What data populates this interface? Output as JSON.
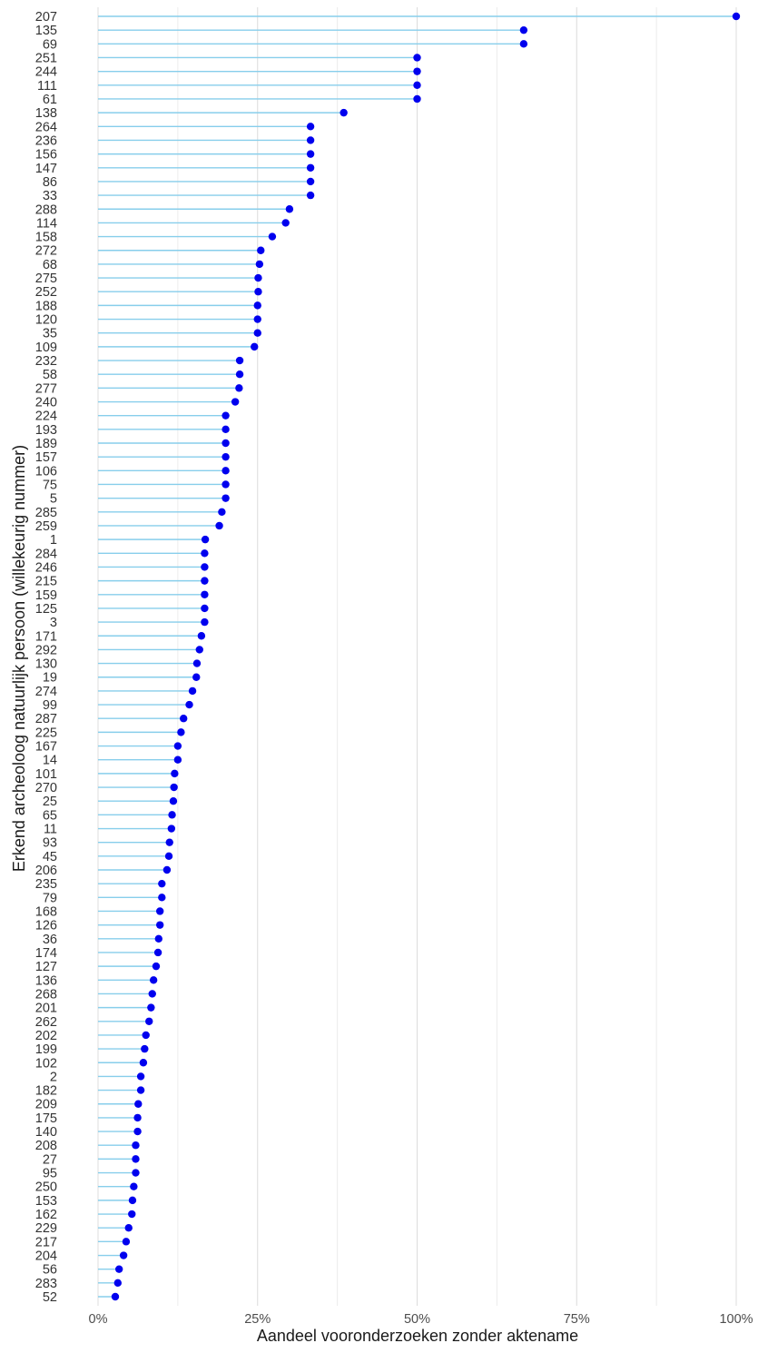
{
  "chart_data": {
    "type": "lollipop",
    "orientation": "horizontal",
    "xlabel": "Aandeel vooronderzoeken zonder aktename",
    "ylabel": "Erkend archeoloog natuurlijk persoon (willekeurig nummer)",
    "xlim": [
      0,
      1
    ],
    "x_ticks": [
      {
        "value": 0,
        "label": "0%"
      },
      {
        "value": 0.25,
        "label": "25%"
      },
      {
        "value": 0.5,
        "label": "50%"
      },
      {
        "value": 0.75,
        "label": "75%"
      },
      {
        "value": 1,
        "label": "100%"
      }
    ],
    "grid": "vertical major and minor",
    "categories": [
      "207",
      "135",
      "69",
      "251",
      "244",
      "111",
      "61",
      "138",
      "264",
      "236",
      "156",
      "147",
      "86",
      "33",
      "288",
      "114",
      "158",
      "272",
      "68",
      "275",
      "252",
      "188",
      "120",
      "35",
      "109",
      "232",
      "58",
      "277",
      "240",
      "224",
      "193",
      "189",
      "157",
      "106",
      "75",
      "5",
      "285",
      "259",
      "1",
      "284",
      "246",
      "215",
      "159",
      "125",
      "3",
      "171",
      "292",
      "130",
      "19",
      "274",
      "99",
      "287",
      "225",
      "167",
      "14",
      "101",
      "270",
      "25",
      "65",
      "11",
      "93",
      "45",
      "206",
      "235",
      "79",
      "168",
      "126",
      "36",
      "174",
      "127",
      "136",
      "268",
      "201",
      "262",
      "202",
      "199",
      "102",
      "2",
      "182",
      "209",
      "175",
      "140",
      "208",
      "27",
      "95",
      "250",
      "153",
      "162",
      "229",
      "217",
      "204",
      "56",
      "283",
      "52"
    ],
    "values": [
      1.0,
      0.667,
      0.667,
      0.5,
      0.5,
      0.5,
      0.5,
      0.385,
      0.333,
      0.333,
      0.333,
      0.333,
      0.333,
      0.333,
      0.3,
      0.294,
      0.273,
      0.255,
      0.253,
      0.251,
      0.251,
      0.25,
      0.25,
      0.25,
      0.245,
      0.222,
      0.222,
      0.221,
      0.215,
      0.2,
      0.2,
      0.2,
      0.2,
      0.2,
      0.2,
      0.2,
      0.194,
      0.19,
      0.168,
      0.167,
      0.167,
      0.167,
      0.167,
      0.167,
      0.167,
      0.162,
      0.159,
      0.155,
      0.154,
      0.148,
      0.143,
      0.134,
      0.13,
      0.125,
      0.125,
      0.12,
      0.119,
      0.118,
      0.116,
      0.115,
      0.112,
      0.111,
      0.108,
      0.1,
      0.1,
      0.097,
      0.097,
      0.095,
      0.094,
      0.091,
      0.087,
      0.085,
      0.083,
      0.08,
      0.075,
      0.073,
      0.071,
      0.067,
      0.067,
      0.063,
      0.062,
      0.062,
      0.059,
      0.059,
      0.059,
      0.056,
      0.054,
      0.053,
      0.048,
      0.044,
      0.04,
      0.033,
      0.031,
      0.027
    ],
    "stem_color": "#87CEEB",
    "point_color": "#0000EE"
  }
}
